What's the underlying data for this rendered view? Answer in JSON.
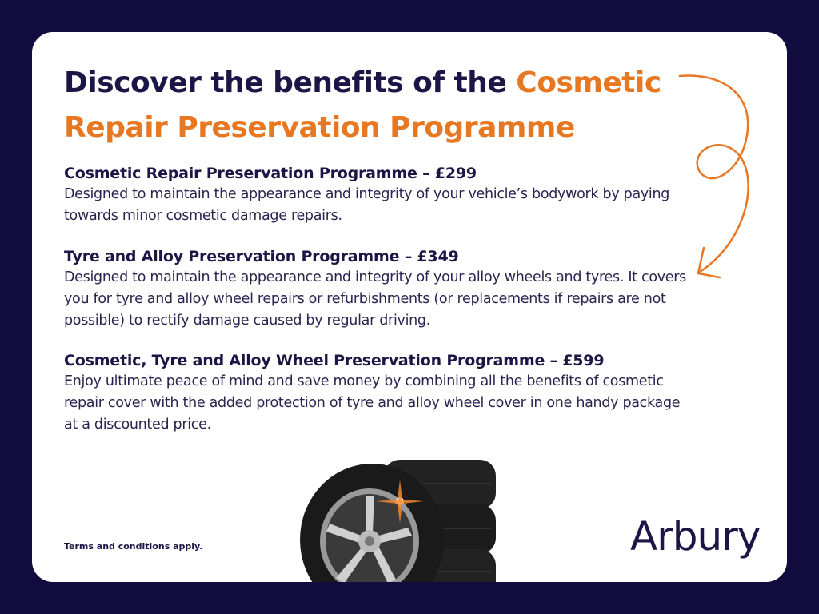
{
  "heading": {
    "prefix": "Discover the benefits of the ",
    "accent": "Cosmetic Repair Preservation Programme"
  },
  "programmes": [
    {
      "title": "Cosmetic Repair Preservation Programme – £299",
      "description": "Designed to maintain the appearance and integrity of your vehicle’s bodywork by paying towards minor cosmetic damage repairs."
    },
    {
      "title": "Tyre and Alloy Preservation Programme – £349",
      "description": "Designed to maintain the appearance and integrity of your alloy wheels and tyres. It covers you for tyre and alloy wheel repairs or refurbishments (or replacements if repairs are not possible) to rectify damage caused by regular driving."
    },
    {
      "title": "Cosmetic, Tyre and Alloy Wheel Preservation Programme – £599",
      "description": "Enjoy ultimate peace of mind and save money by combining all the benefits of cosmetic repair cover with the added protection of tyre and alloy wheel cover in one handy package at a discounted price."
    }
  ],
  "terms": "Terms and conditions apply.",
  "logo": "Arbury",
  "colors": {
    "navy": "#1b1646",
    "accent": "#e87722",
    "background": "#110c3d"
  }
}
